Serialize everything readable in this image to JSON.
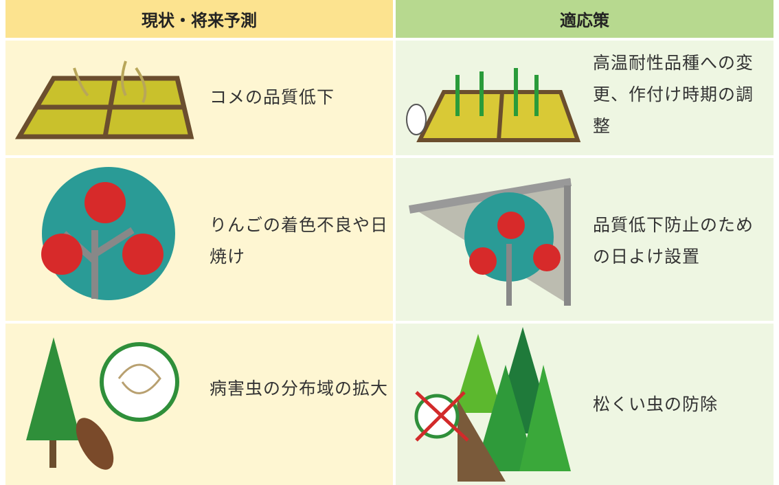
{
  "header": [
    "現状・将来予測",
    "適応策"
  ],
  "rows": [
    [
      "コメの品質低下",
      "高温耐性品種への変更、作付け時期の調整"
    ],
    [
      "りんごの着色不良や日焼け",
      "品質低下防止のための日よけ設置"
    ],
    [
      "病害虫の分布域の拡大",
      "松くい虫の防除"
    ]
  ]
}
